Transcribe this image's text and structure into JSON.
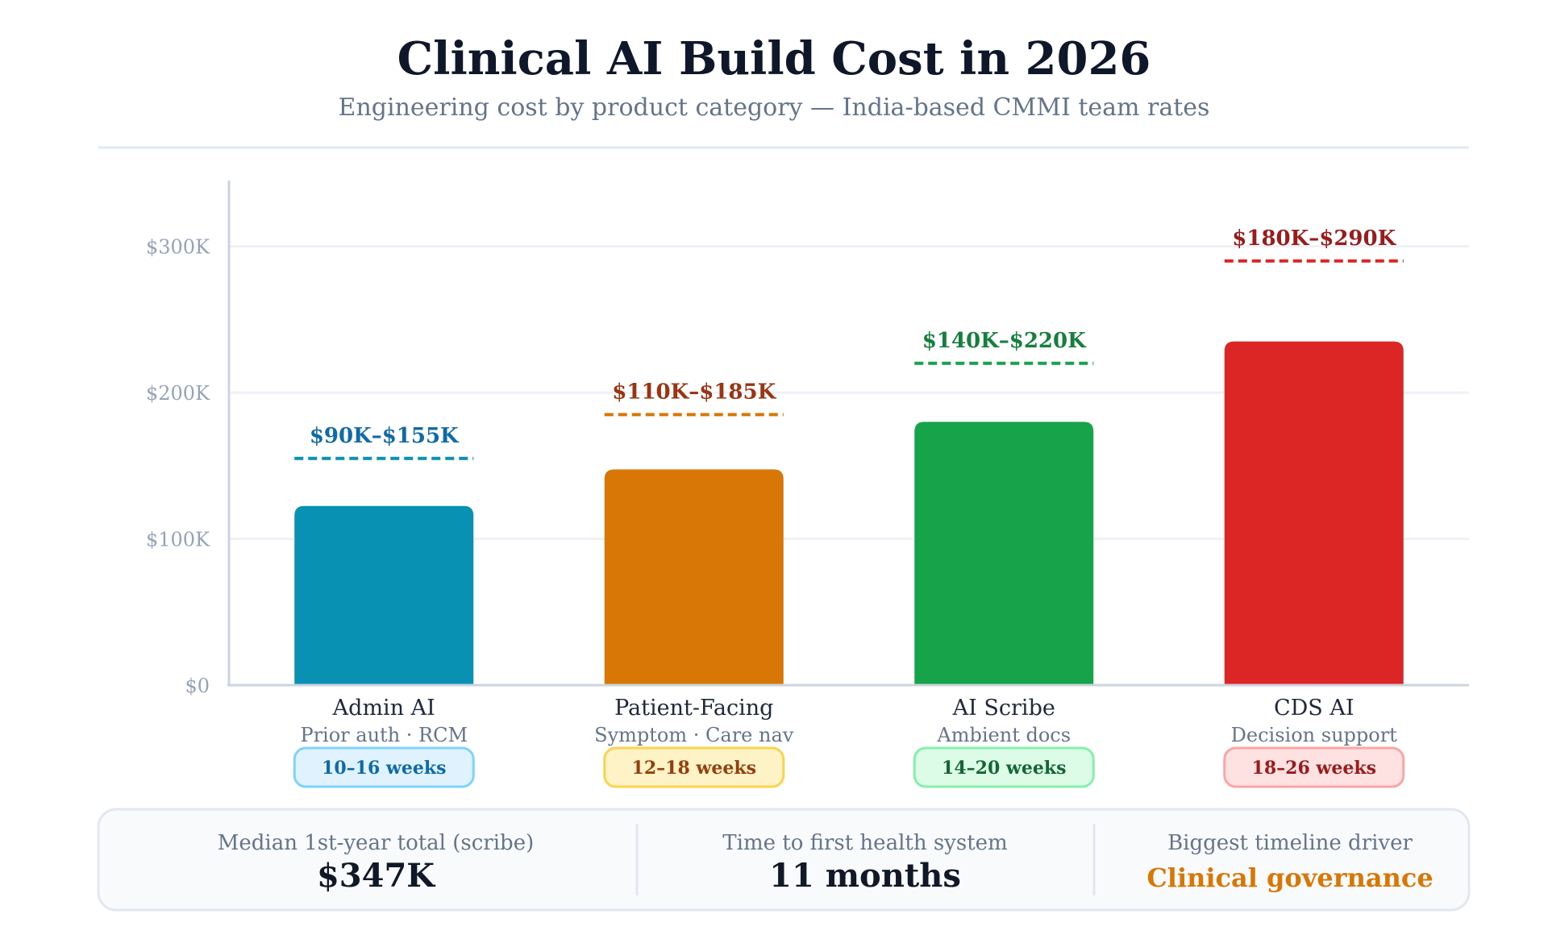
{
  "header": {
    "title": "Clinical AI Build Cost in 2026",
    "subtitle": "Engineering cost by product category — India-based CMMI team rates"
  },
  "chart_data": {
    "type": "bar",
    "categories": [
      "Admin AI",
      "Patient-Facing",
      "AI Scribe",
      "CDS AI"
    ],
    "subcategories": [
      "Prior auth · RCM",
      "Symptom · Care nav",
      "Ambient docs",
      "Decision support"
    ],
    "values": [
      122500,
      147500,
      180000,
      235000
    ],
    "range_high": [
      155000,
      185000,
      220000,
      290000
    ],
    "range_labels": [
      "$90K–$155K",
      "$110K–$185K",
      "$140K–$220K",
      "$180K–$290K"
    ],
    "timelines": [
      "10–16 weeks",
      "12–18 weeks",
      "14–20 weeks",
      "18–26 weeks"
    ],
    "ylim": [
      0,
      345000
    ],
    "yticks": [
      0,
      100000,
      200000,
      300000
    ],
    "ytick_labels": [
      "$0",
      "$100K",
      "$200K",
      "$300K"
    ],
    "grid": true,
    "colors": {
      "bars": [
        "#0891b2",
        "#d97706",
        "#16a34a",
        "#dc2626"
      ],
      "range_text": [
        "#0e6ba8",
        "#9a3412",
        "#15803d",
        "#991b1b"
      ],
      "pill_bg": [
        "#e0f2fe",
        "#fef3c7",
        "#dcfce7",
        "#fee2e2"
      ],
      "pill_border": [
        "#7dd3fc",
        "#fcd34d",
        "#86efac",
        "#fca5a5"
      ],
      "pill_text": [
        "#0e6ba8",
        "#92400e",
        "#166534",
        "#991b1b"
      ]
    }
  },
  "summary": [
    {
      "label": "Median 1st-year total (scribe)",
      "value": "$347K",
      "color": "#111827"
    },
    {
      "label": "Time to first health system",
      "value": "11 months",
      "color": "#111827"
    },
    {
      "label": "Biggest timeline driver",
      "value": "Clinical governance",
      "color": "#d97706"
    }
  ]
}
